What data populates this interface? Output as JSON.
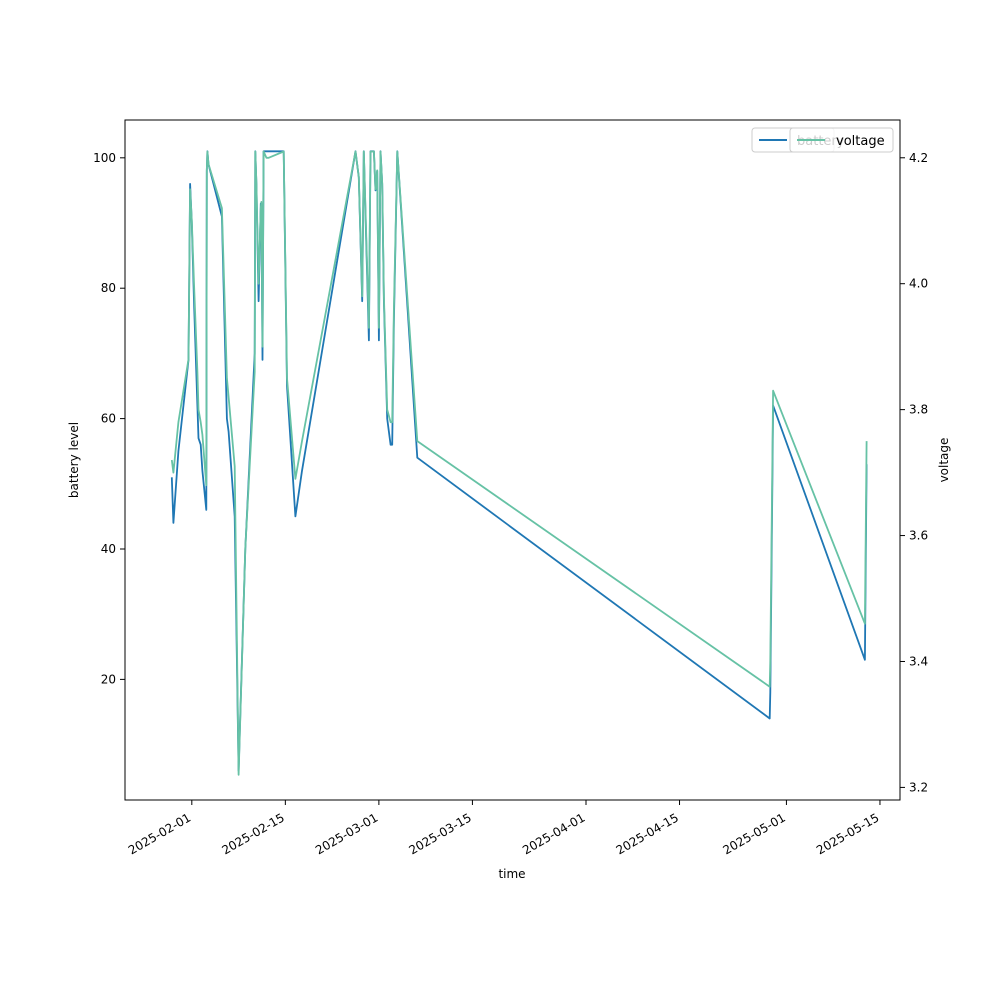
{
  "chart_data": {
    "type": "line",
    "title": "",
    "xlabel": "time",
    "ylabel": "battery level",
    "y2label": "voltage",
    "x_range": [
      "2025-01-22",
      "2025-05-18"
    ],
    "ylim": [
      1.5,
      105.8
    ],
    "y2lim": [
      3.18,
      4.26
    ],
    "x_ticks": [
      "2025-02-01",
      "2025-02-15",
      "2025-03-01",
      "2025-03-15",
      "2025-04-01",
      "2025-04-15",
      "2025-05-01",
      "2025-05-15"
    ],
    "y_ticks": [
      20,
      40,
      60,
      80,
      100
    ],
    "y2_ticks": [
      3.2,
      3.4,
      3.6,
      3.8,
      4.0,
      4.2
    ],
    "y2_tick_labels": [
      "3.2",
      "3.4",
      "3.6",
      "3.8",
      "4.0",
      "4.2"
    ],
    "grid": false,
    "legend_position": "top-right",
    "series": [
      {
        "name": "battery",
        "axis": "left",
        "color": "#1f77b4",
        "x": [
          "2025-01-29",
          "2025-01-29T06:00",
          "2025-01-30",
          "2025-01-31T12:00",
          "2025-01-31T18:00",
          "2025-02-01",
          "2025-02-01T08:00",
          "2025-02-01T20:00",
          "2025-02-02",
          "2025-02-02T08:00",
          "2025-02-02T14:00",
          "2025-02-03T04:00",
          "2025-02-03T06:00",
          "2025-02-03T08:00",
          "2025-02-03T12:00",
          "2025-02-05T12:00",
          "2025-02-06T06:00",
          "2025-02-06T12:00",
          "2025-02-07T10:00",
          "2025-02-08",
          "2025-02-09",
          "2025-02-10T10:00",
          "2025-02-10T12:00",
          "2025-02-10T16:00",
          "2025-02-11T00:00",
          "2025-02-11T08:00",
          "2025-02-11T10:00",
          "2025-02-11T14:00",
          "2025-02-11T18:00",
          "2025-02-12T04:00",
          "2025-02-12T06:00",
          "2025-02-12T12:00",
          "2025-02-14T18:00",
          "2025-02-15T06:00",
          "2025-02-16T12:00",
          "2025-02-17T12:00",
          "2025-02-25T12:00",
          "2025-02-26T00:00",
          "2025-02-26T12:00",
          "2025-02-26T18:00",
          "2025-02-27T12:00",
          "2025-02-27T18:00",
          "2025-02-28T06:00",
          "2025-02-28T12:00",
          "2025-02-28T18:00",
          "2025-03-01T00:00",
          "2025-03-01T06:00",
          "2025-03-01T12:00",
          "2025-03-01T18:00",
          "2025-03-02T06:00",
          "2025-03-02T18:00",
          "2025-03-03T00:00",
          "2025-03-03T06:00",
          "2025-03-03T18:00",
          "2025-03-06T18:00",
          "2025-04-28T12:00",
          "2025-04-28T14:00",
          "2025-04-29T00:00",
          "2025-05-12T18:00",
          "2025-05-13T00:00"
        ],
        "values": [
          51,
          44,
          55,
          69,
          96,
          90,
          78,
          62,
          57,
          56,
          52,
          46,
          98,
          101,
          99,
          91,
          60,
          58,
          45,
          6,
          40,
          70,
          101,
          96,
          78,
          93,
          93,
          69,
          101,
          101,
          101,
          101,
          101,
          65,
          45,
          52,
          101,
          97,
          78,
          101,
          72,
          101,
          101,
          95,
          98,
          72,
          101,
          96,
          78,
          60,
          56,
          56,
          75,
          101,
          54,
          14,
          18,
          62,
          23,
          53
        ]
      },
      {
        "name": "voltage",
        "axis": "right",
        "color": "#66c2a5",
        "x": [
          "2025-01-29",
          "2025-01-29T06:00",
          "2025-01-30",
          "2025-01-31T12:00",
          "2025-01-31T18:00",
          "2025-02-01",
          "2025-02-01T08:00",
          "2025-02-01T20:00",
          "2025-02-02",
          "2025-02-02T08:00",
          "2025-02-02T14:00",
          "2025-02-03T04:00",
          "2025-02-03T06:00",
          "2025-02-03T08:00",
          "2025-02-03T12:00",
          "2025-02-05T12:00",
          "2025-02-06T06:00",
          "2025-02-06T12:00",
          "2025-02-07T10:00",
          "2025-02-08",
          "2025-02-09",
          "2025-02-10T10:00",
          "2025-02-10T12:00",
          "2025-02-10T16:00",
          "2025-02-11T00:00",
          "2025-02-11T08:00",
          "2025-02-11T10:00",
          "2025-02-11T14:00",
          "2025-02-11T18:00",
          "2025-02-12T04:00",
          "2025-02-12T06:00",
          "2025-02-12T12:00",
          "2025-02-14T18:00",
          "2025-02-15T06:00",
          "2025-02-16T12:00",
          "2025-02-17T12:00",
          "2025-02-25T12:00",
          "2025-02-26T00:00",
          "2025-02-26T12:00",
          "2025-02-26T18:00",
          "2025-02-27T12:00",
          "2025-02-27T18:00",
          "2025-02-28T06:00",
          "2025-02-28T12:00",
          "2025-02-28T18:00",
          "2025-03-01T00:00",
          "2025-03-01T06:00",
          "2025-03-01T12:00",
          "2025-03-01T18:00",
          "2025-03-02T06:00",
          "2025-03-02T18:00",
          "2025-03-03T00:00",
          "2025-03-03T06:00",
          "2025-03-03T18:00",
          "2025-03-06T18:00",
          "2025-04-28T12:00",
          "2025-04-28T14:00",
          "2025-04-29T00:00",
          "2025-05-12T18:00",
          "2025-05-13T00:00"
        ],
        "values": [
          3.72,
          3.7,
          3.78,
          3.88,
          4.15,
          4.1,
          4.0,
          3.86,
          3.8,
          3.78,
          3.76,
          3.68,
          4.18,
          4.21,
          4.19,
          4.12,
          3.85,
          3.82,
          3.71,
          3.22,
          3.58,
          3.86,
          4.21,
          4.16,
          4.0,
          4.12,
          4.13,
          3.9,
          4.21,
          4.2,
          4.2,
          4.2,
          4.21,
          3.85,
          3.69,
          3.75,
          4.21,
          4.17,
          3.98,
          4.21,
          3.93,
          4.21,
          4.21,
          4.15,
          4.18,
          3.93,
          4.21,
          4.16,
          3.98,
          3.8,
          3.78,
          3.78,
          3.96,
          4.21,
          3.75,
          3.36,
          3.4,
          3.83,
          3.46,
          3.75
        ]
      }
    ]
  }
}
